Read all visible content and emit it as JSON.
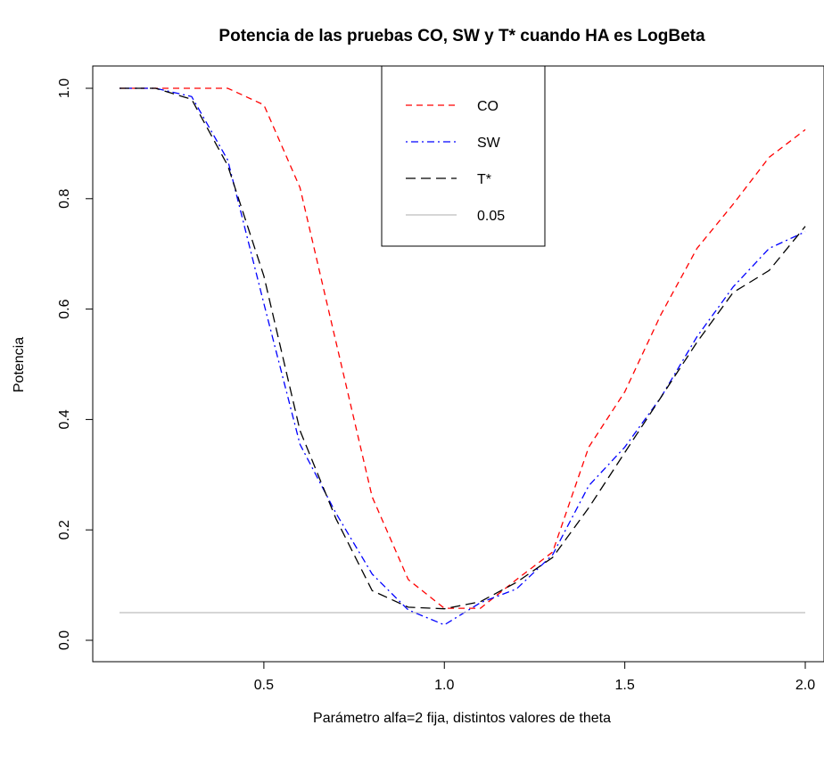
{
  "chart_data": {
    "type": "line",
    "title": "Potencia de las pruebas CO, SW y T* cuando HA es LogBeta",
    "xlabel": "Parámetro alfa=2 fija, distintos valores de theta",
    "ylabel": "Potencia",
    "xlim": [
      0.1,
      2.0
    ],
    "ylim": [
      0.0,
      1.0
    ],
    "x_ticks": [
      "0.5",
      "1.0",
      "1.5",
      "2.0"
    ],
    "y_ticks": [
      "0.0",
      "0.2",
      "0.4",
      "0.6",
      "0.8",
      "1.0"
    ],
    "grid": false,
    "legend_position": "top-center",
    "series": [
      {
        "name": "CO",
        "color": "#ff0000",
        "dash": "dashed",
        "x": [
          0.1,
          0.2,
          0.3,
          0.4,
          0.5,
          0.6,
          0.7,
          0.8,
          0.9,
          1.0,
          1.1,
          1.2,
          1.3,
          1.4,
          1.5,
          1.6,
          1.7,
          1.8,
          1.9,
          2.0
        ],
        "y": [
          1.0,
          1.0,
          1.0,
          1.0,
          0.97,
          0.82,
          0.54,
          0.26,
          0.11,
          0.058,
          0.058,
          0.11,
          0.16,
          0.35,
          0.45,
          0.59,
          0.71,
          0.79,
          0.875,
          0.925
        ]
      },
      {
        "name": "SW",
        "color": "#0000ff",
        "dash": "dotdash",
        "x": [
          0.1,
          0.2,
          0.3,
          0.4,
          0.5,
          0.6,
          0.7,
          0.8,
          0.9,
          1.0,
          1.1,
          1.2,
          1.3,
          1.4,
          1.5,
          1.6,
          1.7,
          1.8,
          1.9,
          2.0
        ],
        "y": [
          1.0,
          1.0,
          0.985,
          0.87,
          0.61,
          0.355,
          0.23,
          0.12,
          0.055,
          0.028,
          0.068,
          0.093,
          0.155,
          0.28,
          0.35,
          0.44,
          0.55,
          0.64,
          0.71,
          0.74
        ]
      },
      {
        "name": "T*",
        "color": "#000000",
        "dash": "longdash",
        "x": [
          0.1,
          0.2,
          0.3,
          0.4,
          0.5,
          0.6,
          0.7,
          0.8,
          0.9,
          1.0,
          1.1,
          1.2,
          1.3,
          1.4,
          1.5,
          1.6,
          1.7,
          1.8,
          1.9,
          2.0
        ],
        "y": [
          1.0,
          1.0,
          0.98,
          0.86,
          0.66,
          0.38,
          0.22,
          0.09,
          0.06,
          0.057,
          0.07,
          0.105,
          0.15,
          0.24,
          0.34,
          0.44,
          0.54,
          0.63,
          0.67,
          0.75
        ]
      },
      {
        "name": "0.05",
        "color": "#bebebe",
        "dash": "solid",
        "x": [
          0.1,
          2.0
        ],
        "y": [
          0.05,
          0.05
        ]
      }
    ]
  }
}
